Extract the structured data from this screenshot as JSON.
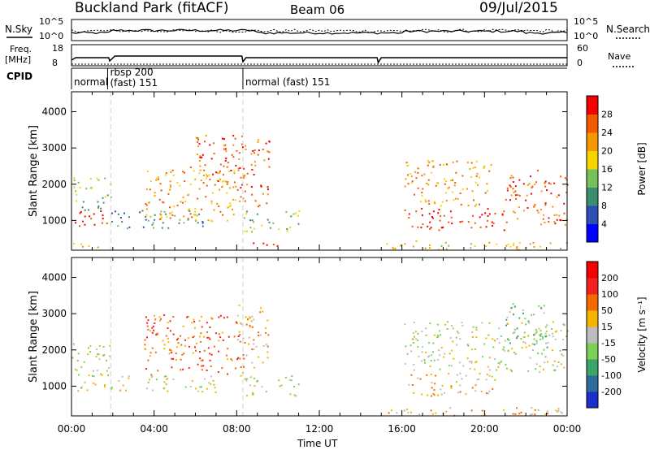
{
  "header": {
    "site": "Buckland Park (fitACF)",
    "beam": "Beam 06",
    "date": "09/Jul/2015"
  },
  "top_panels": {
    "nsky_label": "N.Sky",
    "nsearch_label": "N.Search",
    "freq_label_1": "Freq.",
    "freq_label_2": "[MHz]",
    "nave_label": "Nave",
    "cpid_label": "CPID",
    "noise_ticks_left": [
      "10^5",
      "10^0"
    ],
    "noise_ticks_right": [
      "10^5",
      "10^0"
    ],
    "freq_ticks_left": [
      "18",
      "8"
    ],
    "freq_ticks_right": [
      "60",
      "0"
    ],
    "cpid_segments": [
      {
        "label": "normal",
        "start_h": 0.0,
        "end_h": 1.75
      },
      {
        "label": "rbsp 200",
        "label2": "(fast) 151",
        "start_h": 1.75,
        "end_h": 8.3
      },
      {
        "label": "normal (fast)  151",
        "start_h": 8.3,
        "end_h": 24.0
      }
    ]
  },
  "chart_data": [
    {
      "type": "heatmap",
      "name": "power",
      "ylabel": "Slant Range [km]",
      "ylim": [
        180,
        4550
      ],
      "yticks": [
        "1000",
        "2000",
        "3000",
        "4000"
      ],
      "colorbar_label": "Power [dB]",
      "colorbar_ticks": [
        "4",
        "8",
        "12",
        "16",
        "20",
        "24",
        "28"
      ],
      "colorbar_colors": [
        "#0000ff",
        "#2d4fb5",
        "#3c8c6e",
        "#78c05a",
        "#f7d400",
        "#f39a00",
        "#f25a00",
        "#f20000"
      ],
      "blobs": [
        {
          "t0": 0.0,
          "t1": 1.9,
          "r0": 850,
          "r1": 1300,
          "level": 7
        },
        {
          "t0": 0.0,
          "t1": 1.9,
          "r0": 1300,
          "r1": 2200,
          "level": 3
        },
        {
          "t0": 0.0,
          "t1": 1.9,
          "r0": 250,
          "r1": 400,
          "level": 5
        },
        {
          "t0": 1.9,
          "t1": 6.5,
          "r0": 800,
          "r1": 1300,
          "level": 2
        },
        {
          "t0": 3.5,
          "t1": 8.0,
          "r0": 1000,
          "r1": 2500,
          "level": 5
        },
        {
          "t0": 6.0,
          "t1": 8.3,
          "r0": 2000,
          "r1": 3400,
          "level": 6
        },
        {
          "t0": 8.0,
          "t1": 9.6,
          "r0": 1400,
          "r1": 3300,
          "level": 6
        },
        {
          "t0": 8.3,
          "t1": 11.0,
          "r0": 700,
          "r1": 1300,
          "level": 3
        },
        {
          "t0": 8.6,
          "t1": 10.6,
          "r0": 300,
          "r1": 450,
          "level": 7
        },
        {
          "t0": 14.9,
          "t1": 24.0,
          "r0": 200,
          "r1": 450,
          "level": 4
        },
        {
          "t0": 16.1,
          "t1": 21.0,
          "r0": 750,
          "r1": 1350,
          "level": 7
        },
        {
          "t0": 16.1,
          "t1": 20.3,
          "r0": 1400,
          "r1": 2700,
          "level": 5
        },
        {
          "t0": 21.0,
          "t1": 24.0,
          "r0": 900,
          "r1": 2400,
          "level": 6
        }
      ]
    },
    {
      "type": "heatmap",
      "name": "velocity",
      "ylabel": "Slant Range [km]",
      "ylim": [
        180,
        4550
      ],
      "yticks": [
        "1000",
        "2000",
        "3000",
        "4000"
      ],
      "colorbar_label": "Velocity [m s⁻¹]",
      "colorbar_ticks": [
        "200",
        "100",
        "50",
        "15",
        "-15",
        "-50",
        "-100",
        "-200"
      ],
      "colorbar_colors": [
        "#1a2fc9",
        "#2e6a9a",
        "#3aa46a",
        "#7cd055",
        "#bdbdbd",
        "#f5b400",
        "#f36a00",
        "#f22020",
        "#f20000"
      ],
      "blobs": [
        {
          "t0": 0.0,
          "t1": 1.9,
          "r0": 850,
          "r1": 2200,
          "level": 4
        },
        {
          "t0": 1.9,
          "t1": 7.0,
          "r0": 850,
          "r1": 1300,
          "level": 4
        },
        {
          "t0": 3.5,
          "t1": 8.3,
          "r0": 1300,
          "r1": 3000,
          "level": 6
        },
        {
          "t0": 8.0,
          "t1": 9.5,
          "r0": 1500,
          "r1": 3300,
          "level": 5
        },
        {
          "t0": 8.3,
          "t1": 11.0,
          "r0": 750,
          "r1": 1300,
          "level": 4
        },
        {
          "t0": 14.9,
          "t1": 24.0,
          "r0": 200,
          "r1": 450,
          "level": 5
        },
        {
          "t0": 16.1,
          "t1": 20.5,
          "r0": 750,
          "r1": 1400,
          "level": 5
        },
        {
          "t0": 16.1,
          "t1": 24.0,
          "r0": 1400,
          "r1": 2800,
          "level": 4
        },
        {
          "t0": 21.0,
          "t1": 23.0,
          "r0": 2000,
          "r1": 3300,
          "level": 3
        }
      ]
    }
  ],
  "xaxis": {
    "label": "Time UT",
    "ticks": [
      "00:00",
      "04:00",
      "08:00",
      "12:00",
      "16:00",
      "20:00",
      "00:00"
    ],
    "range_hours": [
      0,
      24
    ]
  }
}
